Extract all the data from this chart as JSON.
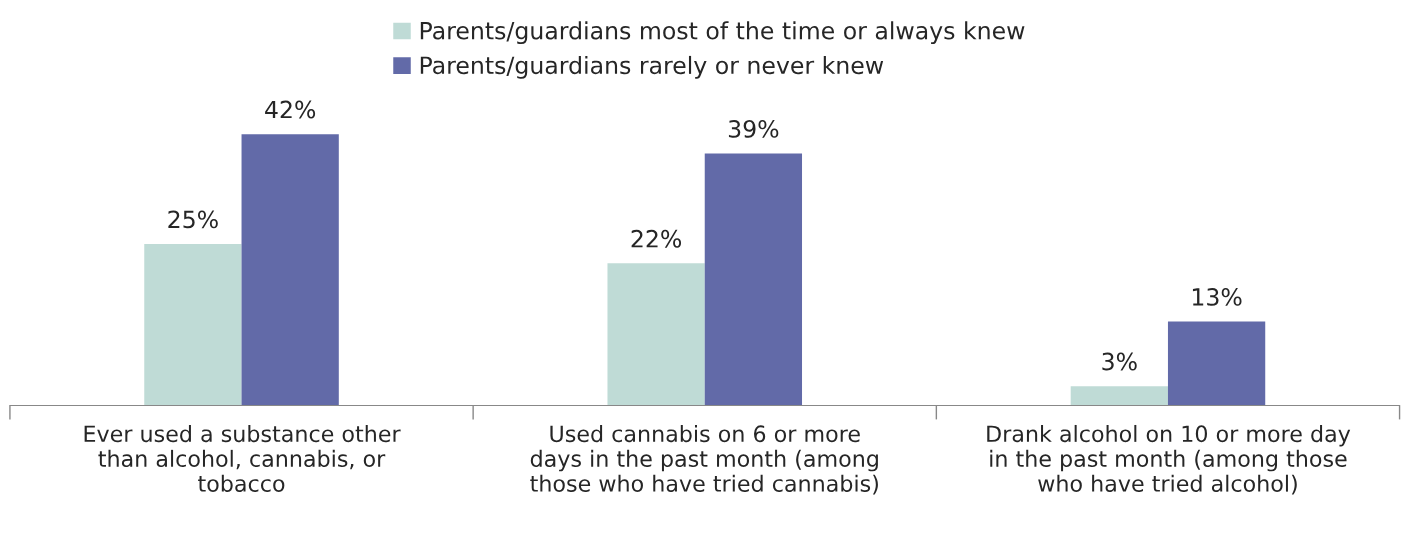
{
  "chart_data": {
    "type": "bar",
    "categories": [
      "Ever used a substance other\nthan alcohol, cannabis, or\ntobacco",
      "Used cannabis on 6 or more\ndays in the past month (among\nthose who have tried cannabis)",
      "Drank alcohol on 10 or more day\nin the past month (among those\nwho have tried alcohol)"
    ],
    "series": [
      {
        "name": "Parents/guardians most of the time or always knew",
        "color": "#bfdbd6",
        "values": [
          25,
          22,
          3
        ],
        "value_labels": [
          "25%",
          "22%",
          "3%"
        ]
      },
      {
        "name": "Parents/guardians rarely or never knew",
        "color": "#626aa8",
        "values": [
          42,
          39,
          13
        ],
        "value_labels": [
          "42%",
          "39%",
          "13%"
        ]
      }
    ],
    "legend": "top",
    "grid": false
  }
}
